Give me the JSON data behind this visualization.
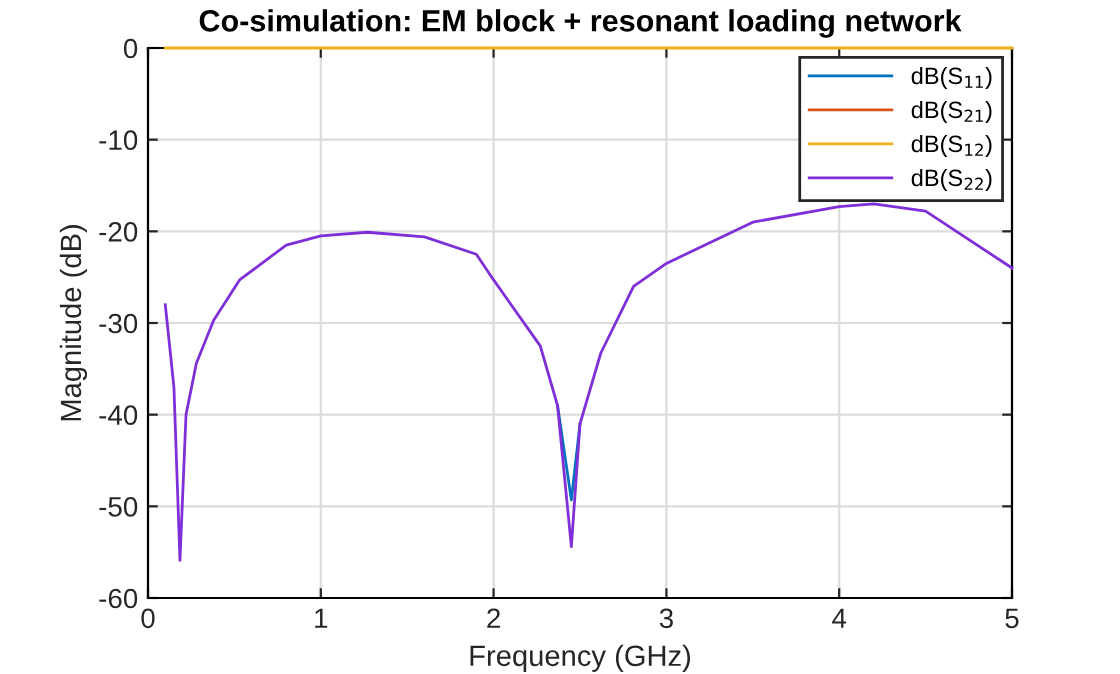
{
  "chart_data": {
    "type": "line",
    "title": "Co-simulation: EM block + resonant loading network",
    "xlabel": "Frequency (GHz)",
    "ylabel": "Magnitude (dB)",
    "x": [
      0.1,
      0.15,
      0.185,
      0.22,
      0.28,
      0.38,
      0.53,
      0.8,
      1.0,
      1.27,
      1.6,
      1.9,
      2.0,
      2.27,
      2.37,
      2.45,
      2.5,
      2.62,
      2.81,
      3.0,
      3.5,
      4.0,
      4.2,
      4.5,
      5.0
    ],
    "series": [
      {
        "name": "dB(S$_{11}$)",
        "color": "#0072bd",
        "values": [
          null,
          null,
          null,
          null,
          null,
          null,
          null,
          null,
          null,
          null,
          null,
          null,
          null,
          null,
          -39,
          -49.3,
          -41,
          null,
          null,
          null,
          null,
          null,
          null,
          null,
          null
        ]
      },
      {
        "name": "dB(S$_{21}$)",
        "color": "#d95319",
        "values": [
          null,
          null,
          null,
          null,
          null,
          null,
          null,
          null,
          null,
          null,
          null,
          null,
          null,
          null,
          null,
          null,
          null,
          null,
          null,
          null,
          null,
          null,
          null,
          null,
          null
        ]
      },
      {
        "name": "dB(S$_{12}$)",
        "color": "#edb120",
        "values": [
          0,
          0,
          0,
          0,
          0,
          0,
          0,
          0,
          0,
          0,
          0,
          0,
          0,
          0,
          0,
          0,
          0,
          0,
          0,
          0,
          0,
          0,
          0,
          0,
          0
        ]
      },
      {
        "name": "dB(S$_{22}$)",
        "color": "#7e2fd8",
        "values": [
          -28,
          -37,
          -55.9,
          -40,
          -34.4,
          -29.7,
          -25.3,
          -21.5,
          -20.5,
          -20.1,
          -20.6,
          -22.5,
          -25.3,
          -32.5,
          -39,
          -54.4,
          -41,
          -33.3,
          -26,
          -23.5,
          -19,
          -17.3,
          -17,
          -17.8,
          -24
        ]
      }
    ],
    "xlim": [
      0,
      5
    ],
    "xticks": [
      0,
      1,
      2,
      3,
      4,
      5
    ],
    "ylim": [
      -60,
      0
    ],
    "yticks": [
      -60,
      -50,
      -40,
      -30,
      -20,
      -10,
      0
    ],
    "grid": true,
    "legend": "top right",
    "line_style": "solid",
    "marker": "none"
  }
}
